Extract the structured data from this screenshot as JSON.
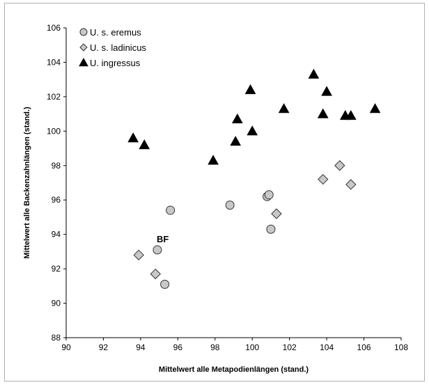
{
  "chart_data": {
    "type": "scatter",
    "xlabel": "Mittelwert alle  Metapodienlängen (stand.)",
    "ylabel": "Mittelwert alle Backenzahnlängen (stand.)",
    "xlim": [
      90,
      108
    ],
    "ylim": [
      88,
      106
    ],
    "x_ticks": [
      90,
      92,
      94,
      96,
      98,
      100,
      102,
      104,
      106,
      108
    ],
    "y_ticks": [
      88,
      90,
      92,
      94,
      96,
      98,
      100,
      102,
      104,
      106
    ],
    "grid": false,
    "legend_position": "top-left",
    "series": [
      {
        "name": "U. s. eremus",
        "marker": "circle",
        "color": "#c8c8c8",
        "points": [
          [
            94.9,
            93.1
          ],
          [
            95.3,
            91.1
          ],
          [
            95.6,
            95.4
          ],
          [
            98.8,
            95.7
          ],
          [
            100.8,
            96.2
          ],
          [
            100.9,
            96.3
          ],
          [
            101.0,
            94.3
          ]
        ]
      },
      {
        "name": "U. s. ladinicus",
        "marker": "diamond",
        "color": "#c8c8c8",
        "points": [
          [
            93.9,
            92.8
          ],
          [
            94.8,
            91.7
          ],
          [
            101.3,
            95.2
          ],
          [
            103.8,
            97.2
          ],
          [
            104.7,
            98.0
          ],
          [
            105.3,
            96.9
          ]
        ]
      },
      {
        "name": "U. ingressus",
        "marker": "triangle",
        "color": "#000000",
        "points": [
          [
            93.6,
            99.6
          ],
          [
            94.2,
            99.2
          ],
          [
            97.9,
            98.3
          ],
          [
            99.1,
            99.4
          ],
          [
            99.2,
            100.7
          ],
          [
            99.9,
            102.4
          ],
          [
            100.0,
            100.0
          ],
          [
            101.7,
            101.3
          ],
          [
            103.3,
            103.3
          ],
          [
            103.8,
            101.0
          ],
          [
            104.0,
            102.3
          ],
          [
            105.0,
            100.9
          ],
          [
            105.3,
            100.9
          ],
          [
            106.6,
            101.3
          ]
        ]
      }
    ],
    "annotations": [
      {
        "text": "BF",
        "x": 94.9,
        "y": 93.1
      }
    ]
  }
}
